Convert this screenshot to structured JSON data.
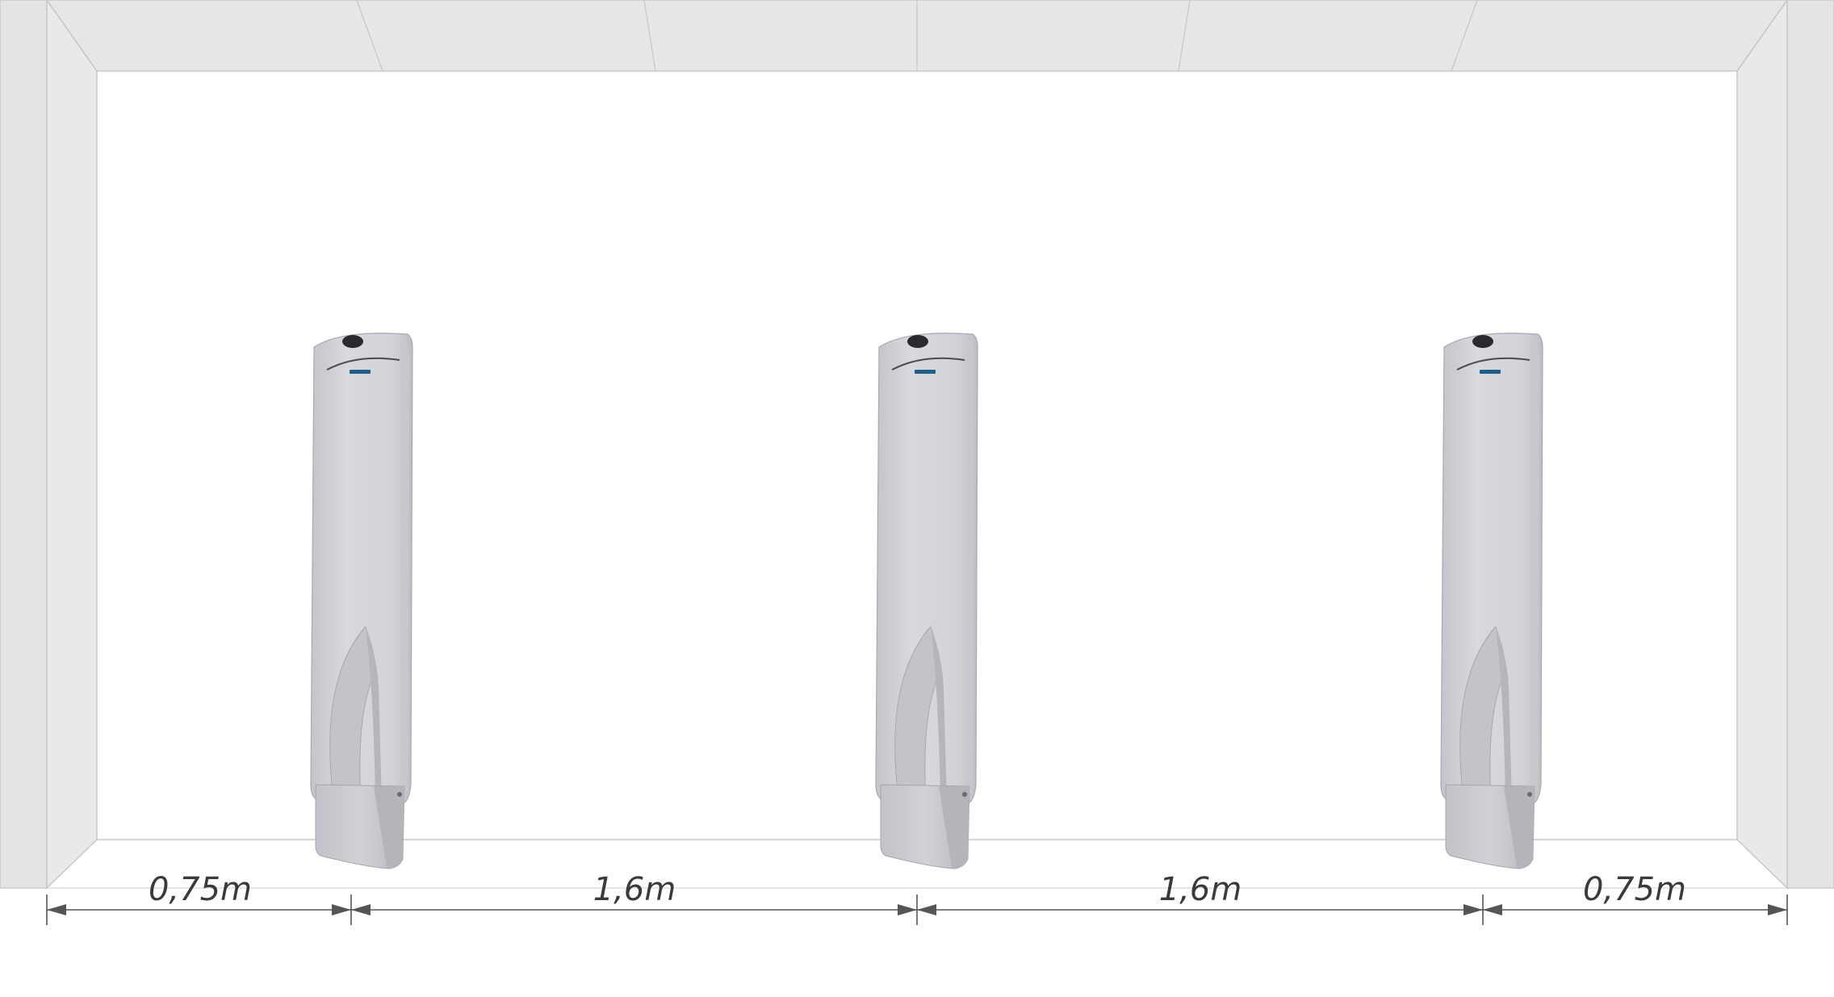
{
  "diagram": {
    "gates": [
      {
        "id": "gate-1"
      },
      {
        "id": "gate-2"
      },
      {
        "id": "gate-3"
      }
    ],
    "dimensions": [
      {
        "label": "0,75m"
      },
      {
        "label": "1,6m"
      },
      {
        "label": "1,6m"
      },
      {
        "label": "0,75m"
      }
    ]
  },
  "colors": {
    "wall_face": "#e6e6e6",
    "wall_side": "#e9e9e9",
    "wall_edge": "#c8c8c8",
    "gate_body": "#cfd0d5",
    "gate_shadow": "#b9bac0",
    "gate_dark": "#2a2a2e",
    "logo": "#1e5f8a",
    "dim_line": "#555555"
  }
}
